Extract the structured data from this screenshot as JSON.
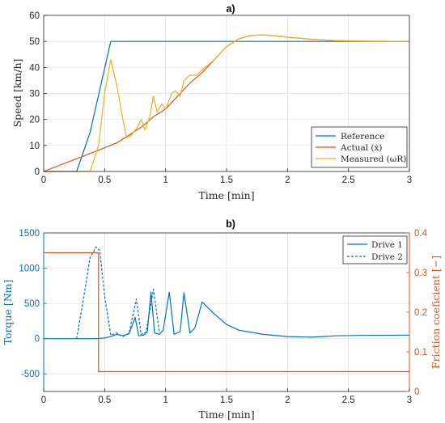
{
  "colors": {
    "blue": "#0072BD",
    "orange": "#D95319",
    "yellow": "#EDB120",
    "axis": "#262626",
    "grid": "#dfdfdf"
  },
  "chart_data": [
    {
      "type": "line",
      "title": "a)",
      "xlabel": "Time [min]",
      "ylabel": "Speed [km/h]",
      "xlim": [
        0,
        3
      ],
      "ylim": [
        0,
        60
      ],
      "xticks": [
        "0",
        "0.5",
        "1",
        "1.5",
        "2",
        "2.5",
        "3"
      ],
      "yticks": [
        "0",
        "10",
        "20",
        "30",
        "40",
        "50",
        "60"
      ],
      "grid": true,
      "legend_position": "bottom-right",
      "series": [
        {
          "name": "Reference",
          "color": "#0072BD",
          "x": [
            0,
            0.27,
            0.38,
            0.55,
            3.0
          ],
          "y": [
            0,
            0,
            15,
            50,
            50
          ]
        },
        {
          "name": "Actual (ẋ)",
          "color": "#D95319",
          "x": [
            0,
            0.44,
            0.6,
            0.7,
            0.8,
            0.9,
            1.0,
            1.1,
            1.2,
            1.3,
            1.4,
            1.5,
            1.6,
            1.7,
            1.8,
            1.9,
            2.0,
            2.2,
            2.4,
            2.6,
            3.0
          ],
          "y": [
            0,
            8,
            11,
            14,
            17,
            21,
            24,
            29,
            34,
            38,
            43,
            48,
            51,
            52.3,
            52.5,
            52.2,
            51.6,
            50.8,
            50.3,
            50.1,
            50
          ]
        },
        {
          "name": "Measured (ωR)",
          "color": "#EDB120",
          "x": [
            0,
            0.25,
            0.38,
            0.45,
            0.5,
            0.55,
            0.6,
            0.65,
            0.68,
            0.72,
            0.77,
            0.8,
            0.83,
            0.87,
            0.9,
            0.93,
            0.97,
            1.0,
            1.05,
            1.08,
            1.12,
            1.15,
            1.2,
            1.25,
            1.3,
            1.4,
            1.5,
            1.6,
            1.7,
            1.8,
            1.9,
            2.0,
            2.2,
            2.4,
            2.6,
            3.0
          ],
          "y": [
            0,
            0,
            0,
            10,
            30,
            43,
            33,
            20,
            13,
            14,
            17,
            20,
            16,
            21,
            29,
            23,
            26,
            24,
            30,
            31,
            29,
            35,
            37,
            37,
            39,
            43,
            48,
            51,
            52.3,
            52.5,
            52.2,
            51.6,
            50.8,
            50.3,
            50.1,
            50
          ]
        }
      ]
    },
    {
      "type": "line",
      "title": "b)",
      "xlabel": "Time [min]",
      "ylabel": "Torque [Nm]",
      "y2label": "Friction coeficient [−]",
      "xlim": [
        0,
        3
      ],
      "ylim": [
        -750,
        1500
      ],
      "y2lim": [
        0,
        0.4
      ],
      "xticks": [
        "0",
        "0.5",
        "1",
        "1.5",
        "2",
        "2.5",
        "3"
      ],
      "yticks": [
        "-500",
        "0",
        "500",
        "1000",
        "1500"
      ],
      "y2ticks": [
        "0",
        "0.1",
        "0.2",
        "0.3",
        "0.4"
      ],
      "grid": true,
      "legend_position": "top-right",
      "series": [
        {
          "name": "Drive 1",
          "color": "#0072BD",
          "axis": "left",
          "style": "solid",
          "x": [
            0,
            0.44,
            0.5,
            0.55,
            0.6,
            0.65,
            0.7,
            0.75,
            0.78,
            0.82,
            0.85,
            0.88,
            0.91,
            0.95,
            0.98,
            1.03,
            1.07,
            1.12,
            1.15,
            1.2,
            1.24,
            1.3,
            1.4,
            1.5,
            1.6,
            1.8,
            2.0,
            2.2,
            2.4,
            2.6,
            3.0
          ],
          "y": [
            0,
            0,
            10,
            30,
            60,
            40,
            70,
            300,
            40,
            50,
            100,
            660,
            80,
            60,
            120,
            660,
            60,
            100,
            650,
            80,
            150,
            520,
            350,
            200,
            120,
            60,
            30,
            20,
            40,
            45,
            50
          ]
        },
        {
          "name": "Drive 2",
          "color": "#0072BD",
          "axis": "left",
          "style": "dashed",
          "x": [
            0.27,
            0.33,
            0.38,
            0.43,
            0.46,
            0.5,
            0.55,
            0.6,
            0.65,
            0.7,
            0.76,
            0.8,
            0.84,
            0.9,
            0.95
          ],
          "y": [
            0,
            600,
            1150,
            1300,
            1250,
            600,
            50,
            80,
            30,
            80,
            560,
            60,
            90,
            700,
            80
          ]
        },
        {
          "name": "Friction coefficient",
          "color": "#D95319",
          "axis": "right",
          "style": "solid",
          "x": [
            0,
            0.45,
            0.45,
            3.0
          ],
          "y": [
            0.35,
            0.35,
            0.05,
            0.05
          ]
        }
      ]
    }
  ]
}
